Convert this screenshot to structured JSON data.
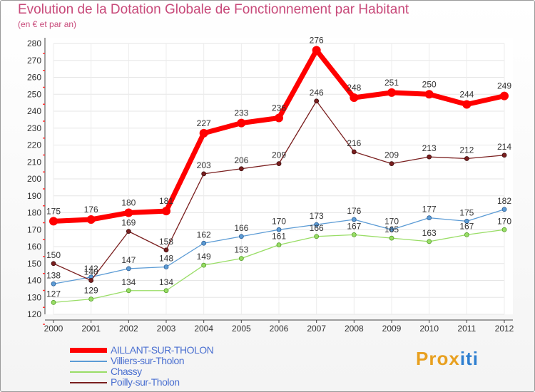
{
  "title": "Evolution de la Dotation Globale de Fonctionnement par Habitant",
  "subtitle": "(en € et par an)",
  "logo": {
    "part1": "Pro",
    "part2": "x",
    "part3": "iti"
  },
  "chart_data": {
    "type": "line",
    "title": "Evolution de la Dotation Globale de Fonctionnement par Habitant",
    "subtitle": "(en € et par an)",
    "xlabel": "",
    "ylabel": "",
    "categories": [
      "2000",
      "2001",
      "2002",
      "2003",
      "2004",
      "2005",
      "2006",
      "2007",
      "2008",
      "2009",
      "2010",
      "2011",
      "2012"
    ],
    "ylim": [
      120,
      280
    ],
    "yticks": [
      120,
      130,
      140,
      150,
      160,
      170,
      180,
      190,
      200,
      210,
      220,
      230,
      240,
      250,
      260,
      270,
      280
    ],
    "grid": true,
    "legend_position": "bottom-left",
    "series": [
      {
        "name": "AILLANT-SUR-THOLON",
        "color": "#ff0000",
        "values": [
          175,
          176,
          180,
          181,
          227,
          233,
          236,
          276,
          248,
          251,
          250,
          244,
          249
        ]
      },
      {
        "name": "Villiers-sur-Tholon",
        "color": "#5b9bd5",
        "values": [
          138,
          142,
          147,
          148,
          162,
          166,
          170,
          173,
          176,
          170,
          177,
          175,
          182
        ]
      },
      {
        "name": "Chassy",
        "color": "#99dd66",
        "values": [
          127,
          129,
          134,
          134,
          149,
          153,
          161,
          166,
          167,
          165,
          163,
          167,
          170
        ]
      },
      {
        "name": "Poilly-sur-Tholon",
        "color": "#7a1f1f",
        "values": [
          150,
          140,
          169,
          158,
          203,
          206,
          209,
          246,
          216,
          209,
          213,
          212,
          214
        ]
      }
    ]
  }
}
